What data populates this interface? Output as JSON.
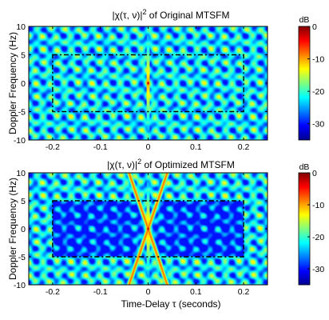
{
  "chart_data": [
    {
      "type": "heatmap",
      "title_prefix": "|χ(τ, ν)|",
      "title_exp": "2",
      "title_suffix": " of Original MTSFM",
      "xlabel": "",
      "ylabel": "Doppler Frequency (Hz)",
      "xlim": [
        -0.25,
        0.25
      ],
      "ylim": [
        -10,
        10
      ],
      "x_ticks": [
        "-0.2",
        "-0.1",
        "0",
        "0.1",
        "0.2"
      ],
      "x_tick_values": [
        -0.2,
        -0.1,
        0,
        0.1,
        0.2
      ],
      "y_ticks": [
        "10",
        "5",
        "0",
        "-5",
        "-10"
      ],
      "y_tick_values": [
        10,
        5,
        0,
        -5,
        -10
      ],
      "colorbar": {
        "label": "dB",
        "range": [
          -35,
          0
        ],
        "ticks": [
          "0",
          "-10",
          "-20",
          "-30"
        ],
        "tick_values": [
          0,
          -10,
          -20,
          -30
        ]
      },
      "region": {
        "tau": [
          -0.2,
          0.2
        ],
        "nu": [
          -5,
          5
        ]
      },
      "peak": {
        "tau": 0,
        "nu": 0,
        "db": 0
      }
    },
    {
      "type": "heatmap",
      "title_prefix": "|χ(τ, ν)|",
      "title_exp": "2",
      "title_suffix": " of Optimized MTSFM",
      "xlabel": "Time-Delay τ (seconds)",
      "ylabel": "Doppler Frequency (Hz)",
      "xlim": [
        -0.25,
        0.25
      ],
      "ylim": [
        -10,
        10
      ],
      "x_ticks": [
        "-0.2",
        "-0.1",
        "0",
        "0.1",
        "0.2"
      ],
      "x_tick_values": [
        -0.2,
        -0.1,
        0,
        0.1,
        0.2
      ],
      "y_ticks": [
        "10",
        "5",
        "0",
        "-5",
        "-10"
      ],
      "y_tick_values": [
        10,
        5,
        0,
        -5,
        -10
      ],
      "colorbar": {
        "label": "dB",
        "range": [
          -35,
          0
        ],
        "ticks": [
          "0",
          "-10",
          "-20",
          "-30"
        ],
        "tick_values": [
          0,
          -10,
          -20,
          -30
        ]
      },
      "region": {
        "tau": [
          -0.2,
          0.2
        ],
        "nu": [
          -5,
          5
        ]
      },
      "peak": {
        "tau": 0,
        "nu": 0,
        "db": 0
      }
    }
  ]
}
